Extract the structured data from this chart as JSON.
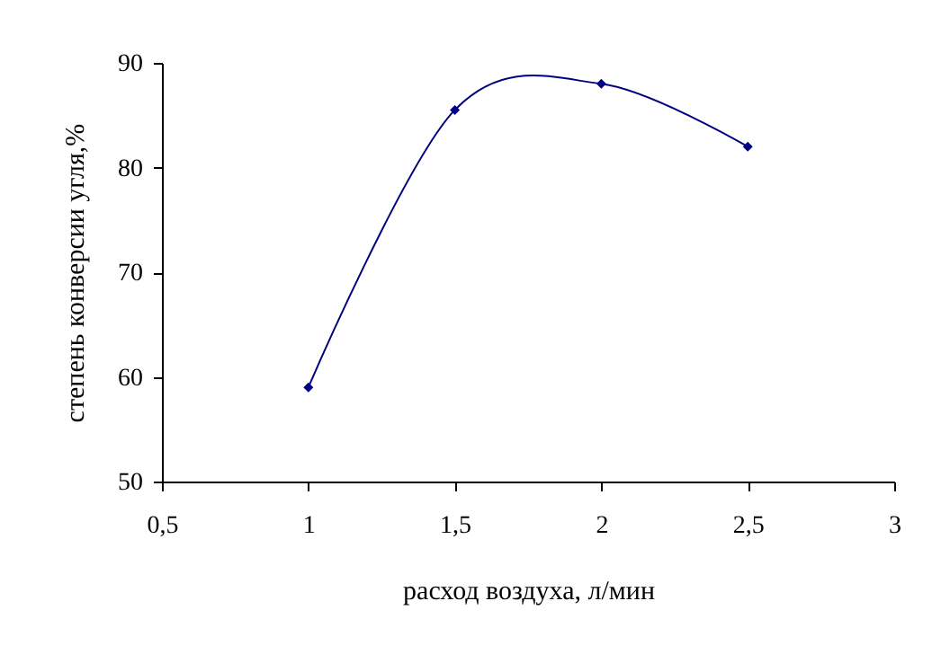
{
  "chart_data": {
    "type": "line",
    "xlabel": "расход воздуха, л/мин",
    "ylabel": "степень конверсии угля,%",
    "x": [
      1,
      1.5,
      2,
      2.5
    ],
    "series": [
      {
        "color": "#000080",
        "values": [
          59,
          85.5,
          88,
          82
        ]
      }
    ],
    "xlim": [
      0.5,
      3
    ],
    "xticks": [
      {
        "value": 0.5,
        "label": "0,5"
      },
      1,
      {
        "value": 1.5,
        "label": "1,5"
      },
      2,
      {
        "value": 2.5,
        "label": "2,5"
      },
      3
    ],
    "ylim": [
      50,
      90
    ],
    "yticks": [
      50,
      60,
      70,
      80,
      90
    ],
    "marker": "diamond",
    "line_style": "solid",
    "grid": false,
    "legend": false
  }
}
